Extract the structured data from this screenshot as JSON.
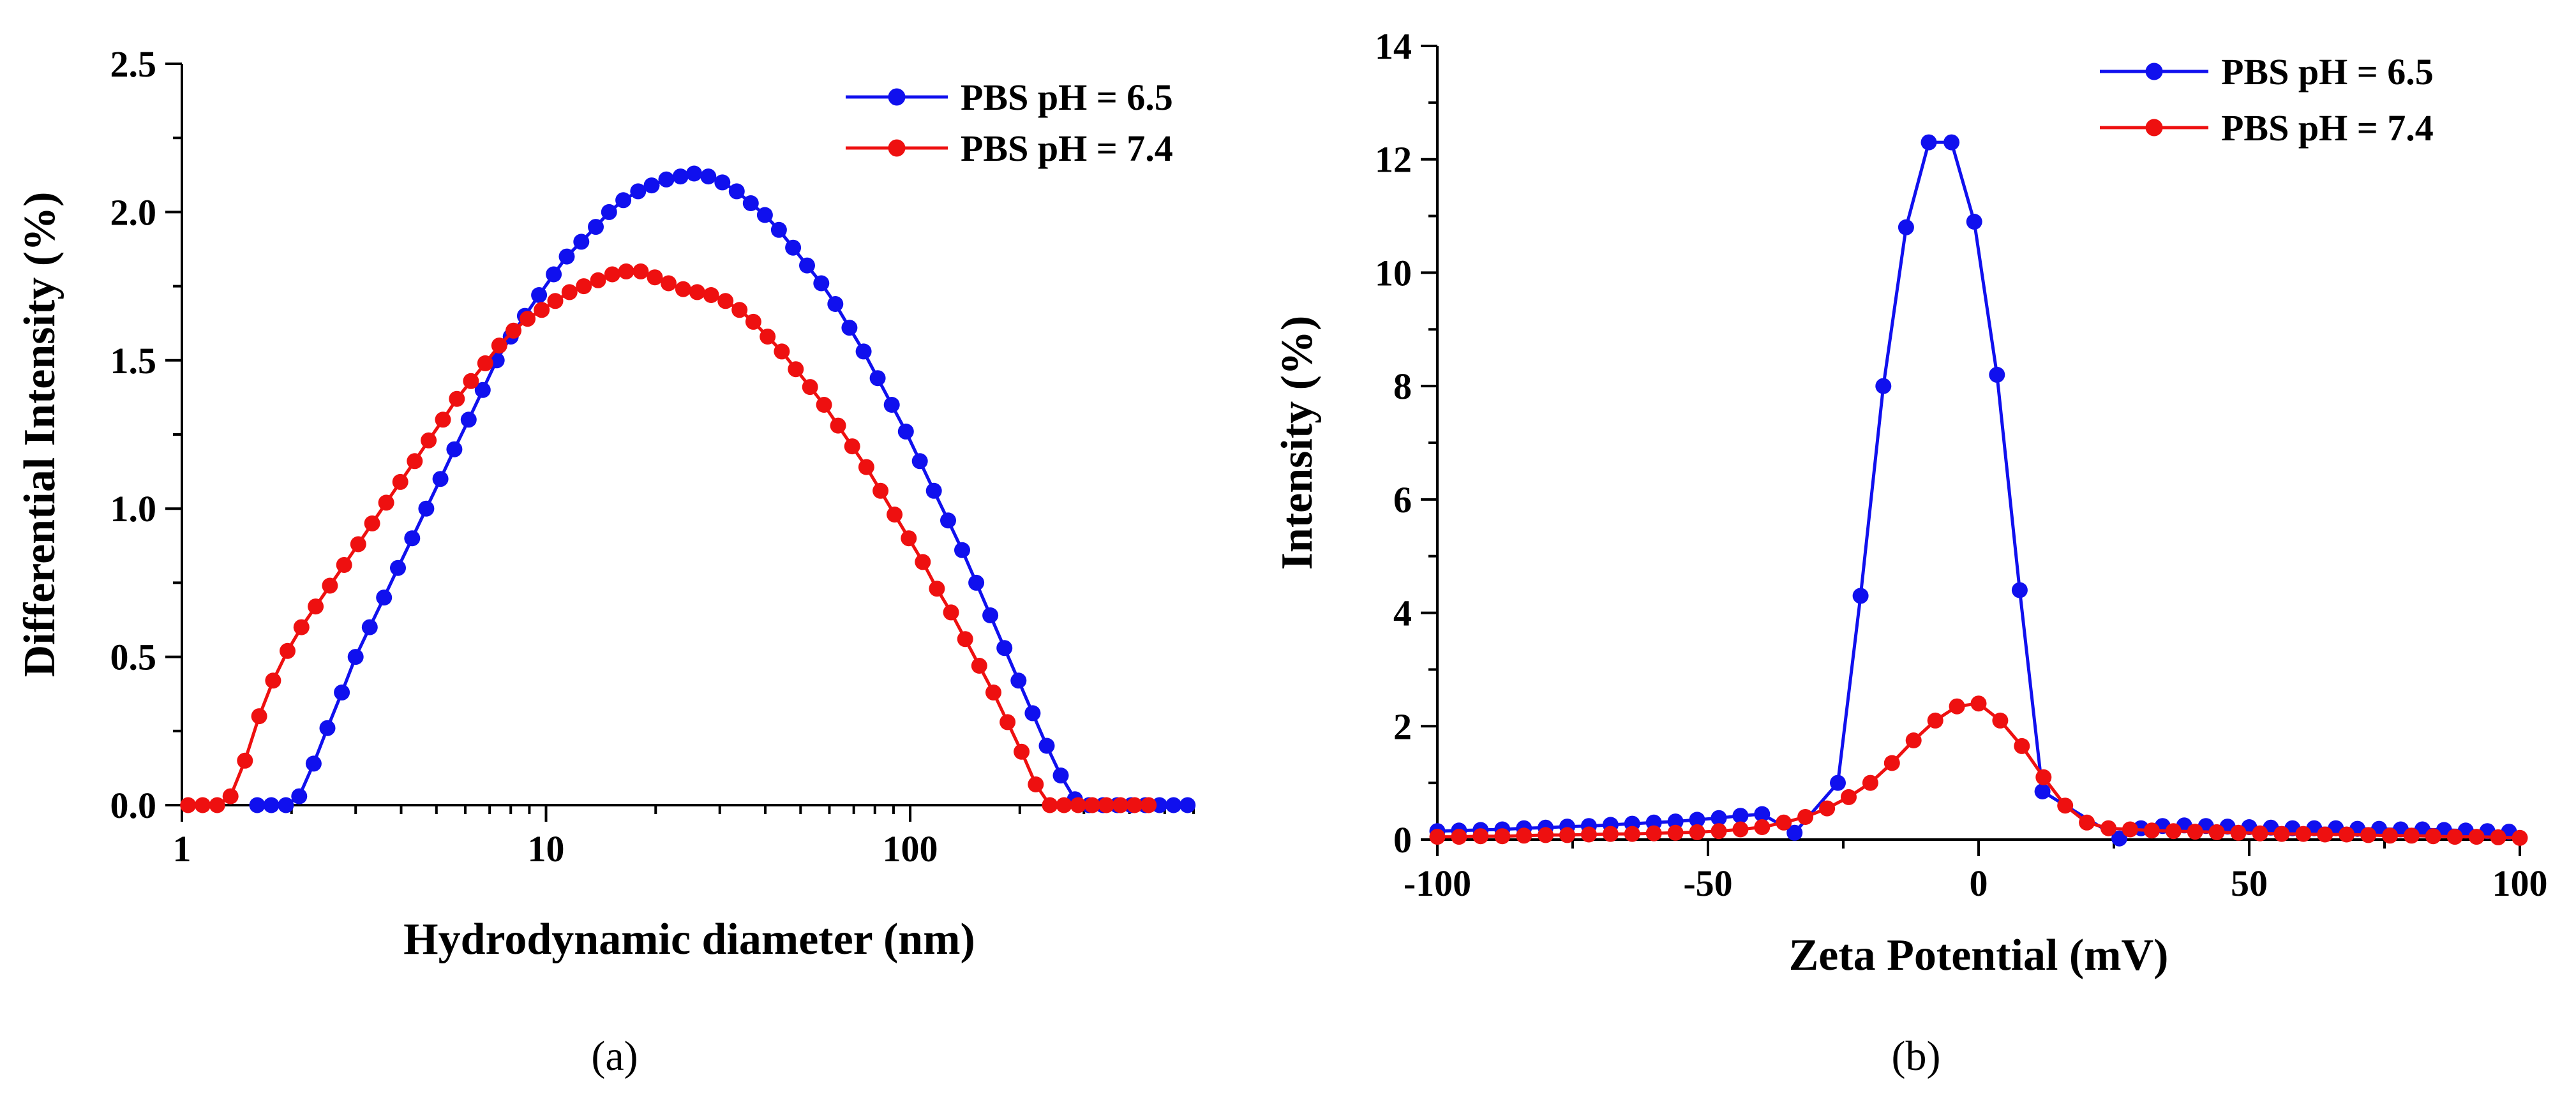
{
  "chart_data": [
    {
      "type": "line",
      "panel_label": "(a)",
      "title": "",
      "xlabel": "Hydrodynamic diameter (nm)",
      "ylabel": "Differential Intensity (%)",
      "xscale": "log",
      "xlim": [
        1,
        600
      ],
      "ylim": [
        0,
        2.5
      ],
      "xticks": [
        1,
        10,
        100
      ],
      "xtick_labels": [
        "1",
        "10",
        "100"
      ],
      "yticks": [
        0,
        0.5,
        1.0,
        1.5,
        2.0,
        2.5
      ],
      "ytick_labels": [
        "0.0",
        "0.5",
        "1.0",
        "1.5",
        "2.0",
        "2.5"
      ],
      "legend_position": "top-right",
      "series": [
        {
          "name": "PBS pH = 6.5",
          "color": "#1010ee",
          "x": [
            1.61,
            1.76,
            1.93,
            2.1,
            2.3,
            2.51,
            2.75,
            3.0,
            3.28,
            3.59,
            3.92,
            4.29,
            4.69,
            5.13,
            5.6,
            6.13,
            6.7,
            7.32,
            8.0,
            8.75,
            9.57,
            10.5,
            11.4,
            12.5,
            13.7,
            14.9,
            16.3,
            17.9,
            19.5,
            21.4,
            23.4,
            25.5,
            27.9,
            30.5,
            33.4,
            36.5,
            39.9,
            43.6,
            47.7,
            52.1,
            57.0,
            62.3,
            68.1,
            74.5,
            81.4,
            89.0,
            97.3,
            106.3,
            116.2,
            127.1,
            138.9,
            151.9,
            166.0,
            181.5,
            198.4,
            216.9,
            237.1,
            259.2,
            283.3,
            309.8,
            338.6,
            370.2,
            404.7,
            442.4,
            483.6,
            528.7,
            578.0
          ],
          "y": [
            0.0,
            0.0,
            0.0,
            0.03,
            0.14,
            0.26,
            0.38,
            0.5,
            0.6,
            0.7,
            0.8,
            0.9,
            1.0,
            1.1,
            1.2,
            1.3,
            1.4,
            1.5,
            1.58,
            1.65,
            1.72,
            1.79,
            1.85,
            1.9,
            1.95,
            2.0,
            2.04,
            2.07,
            2.09,
            2.11,
            2.12,
            2.13,
            2.12,
            2.1,
            2.07,
            2.03,
            1.99,
            1.94,
            1.88,
            1.82,
            1.76,
            1.69,
            1.61,
            1.53,
            1.44,
            1.35,
            1.26,
            1.16,
            1.06,
            0.96,
            0.86,
            0.75,
            0.64,
            0.53,
            0.42,
            0.31,
            0.2,
            0.1,
            0.02,
            0.0,
            0.0,
            0.0,
            0.0,
            0.0,
            0.0,
            0.0,
            0.0
          ]
        },
        {
          "name": "PBS pH = 7.4",
          "color": "#ee1010",
          "x": [
            1.04,
            1.14,
            1.25,
            1.36,
            1.49,
            1.63,
            1.78,
            1.95,
            2.13,
            2.33,
            2.55,
            2.79,
            3.05,
            3.33,
            3.64,
            3.98,
            4.36,
            4.76,
            5.21,
            5.69,
            6.22,
            6.81,
            7.44,
            8.14,
            8.9,
            9.73,
            10.6,
            11.6,
            12.7,
            13.9,
            15.2,
            16.6,
            18.2,
            19.9,
            21.7,
            23.8,
            26.0,
            28.4,
            31.1,
            34.0,
            37.1,
            40.6,
            44.4,
            48.5,
            53.1,
            58.0,
            63.4,
            69.3,
            75.8,
            82.9,
            90.6,
            99.1,
            108.3,
            118.4,
            129.5,
            141.6,
            154.8,
            169.3,
            185.1,
            202.3,
            221.2,
            241.9,
            264.5,
            289.2,
            316.2,
            345.7,
            378.0,
            413.3,
            451.8
          ],
          "y": [
            0.0,
            0.0,
            0.0,
            0.03,
            0.15,
            0.3,
            0.42,
            0.52,
            0.6,
            0.67,
            0.74,
            0.81,
            0.88,
            0.95,
            1.02,
            1.09,
            1.16,
            1.23,
            1.3,
            1.37,
            1.43,
            1.49,
            1.55,
            1.6,
            1.64,
            1.67,
            1.7,
            1.73,
            1.75,
            1.77,
            1.79,
            1.8,
            1.8,
            1.78,
            1.76,
            1.74,
            1.73,
            1.72,
            1.7,
            1.67,
            1.63,
            1.58,
            1.53,
            1.47,
            1.41,
            1.35,
            1.28,
            1.21,
            1.14,
            1.06,
            0.98,
            0.9,
            0.82,
            0.73,
            0.65,
            0.56,
            0.47,
            0.38,
            0.28,
            0.18,
            0.07,
            0.0,
            0.0,
            0.0,
            0.0,
            0.0,
            0.0,
            0.0,
            0.0
          ]
        }
      ]
    },
    {
      "type": "line",
      "panel_label": "(b)",
      "title": "",
      "xlabel": "Zeta Potential (mV)",
      "ylabel": "Intensity (%)",
      "xlim": [
        -100,
        100
      ],
      "ylim": [
        0,
        14
      ],
      "xticks": [
        -100,
        -50,
        0,
        50,
        100
      ],
      "xtick_labels": [
        "-100",
        "-50",
        "0",
        "50",
        "100"
      ],
      "yticks": [
        0,
        2,
        4,
        6,
        8,
        10,
        12,
        14
      ],
      "ytick_labels": [
        "0",
        "2",
        "4",
        "6",
        "8",
        "10",
        "12",
        "14"
      ],
      "legend_position": "top-right",
      "series": [
        {
          "name": "PBS pH = 6.5",
          "color": "#1010ee",
          "x": [
            -100,
            -96,
            -92,
            -88,
            -84,
            -80,
            -76,
            -72,
            -68,
            -64,
            -60,
            -56,
            -52,
            -48,
            -44,
            -40,
            -34,
            -26,
            -21.8,
            -17.6,
            -13.4,
            -9.2,
            -5.0,
            -0.8,
            3.4,
            7.6,
            11.8,
            26,
            30,
            34,
            38,
            42,
            46,
            50,
            54,
            58,
            62,
            66,
            70,
            74,
            78,
            82,
            86,
            90,
            94,
            98
          ],
          "y": [
            0.15,
            0.16,
            0.17,
            0.18,
            0.2,
            0.21,
            0.23,
            0.24,
            0.26,
            0.28,
            0.3,
            0.32,
            0.35,
            0.38,
            0.42,
            0.45,
            0.12,
            1.0,
            4.3,
            8.0,
            10.8,
            12.3,
            12.3,
            10.9,
            8.2,
            4.4,
            0.85,
            0.02,
            0.2,
            0.24,
            0.25,
            0.24,
            0.23,
            0.22,
            0.21,
            0.2,
            0.2,
            0.2,
            0.19,
            0.19,
            0.18,
            0.18,
            0.17,
            0.16,
            0.15,
            0.14
          ]
        },
        {
          "name": "PBS pH = 7.4",
          "color": "#ee1010",
          "x": [
            -100,
            -96,
            -92,
            -88,
            -84,
            -80,
            -76,
            -72,
            -68,
            -64,
            -60,
            -56,
            -52,
            -48,
            -44,
            -40,
            -36,
            -32,
            -28,
            -24,
            -20,
            -16,
            -12,
            -8,
            -4,
            0,
            4,
            8,
            12,
            16,
            20,
            24,
            28,
            32,
            36,
            40,
            44,
            48,
            52,
            56,
            60,
            64,
            68,
            72,
            76,
            80,
            84,
            88,
            92,
            96,
            100
          ],
          "y": [
            0.05,
            0.05,
            0.06,
            0.06,
            0.07,
            0.08,
            0.08,
            0.09,
            0.1,
            0.1,
            0.11,
            0.12,
            0.13,
            0.15,
            0.18,
            0.22,
            0.3,
            0.4,
            0.55,
            0.75,
            1.0,
            1.35,
            1.75,
            2.1,
            2.35,
            2.4,
            2.1,
            1.65,
            1.1,
            0.6,
            0.3,
            0.2,
            0.18,
            0.16,
            0.15,
            0.14,
            0.13,
            0.12,
            0.11,
            0.1,
            0.1,
            0.09,
            0.09,
            0.08,
            0.07,
            0.07,
            0.06,
            0.05,
            0.05,
            0.04,
            0.03
          ]
        }
      ]
    }
  ]
}
